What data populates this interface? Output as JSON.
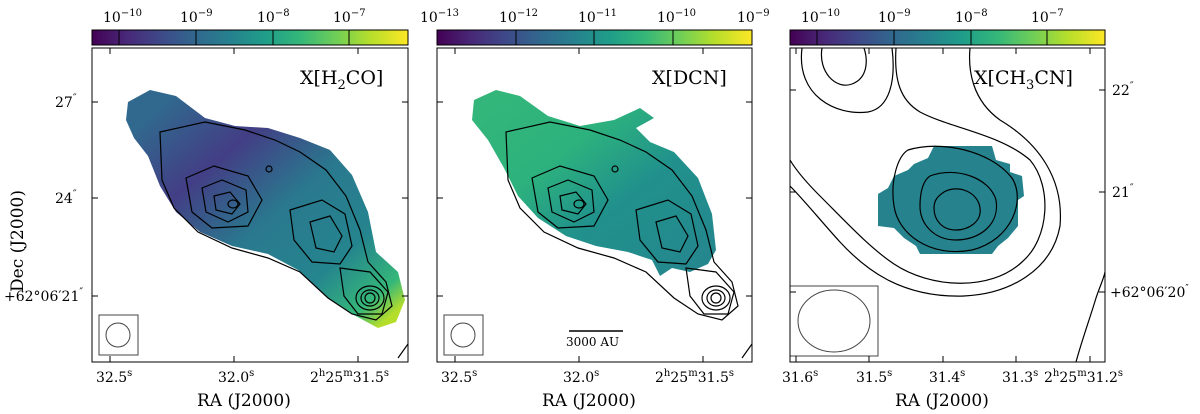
{
  "figure": {
    "xlabel": "RA (J2000)",
    "ylabel": "Dec (J2000)",
    "colors": {
      "viridis": [
        "#440154",
        "#482878",
        "#3e4a89",
        "#31688e",
        "#26828e",
        "#1f9e89",
        "#35b779",
        "#6ece58",
        "#b5de2b",
        "#fde725"
      ],
      "contour": "#000000",
      "frame": "#000000"
    }
  },
  "panels": [
    {
      "id": "h2co",
      "label_main": "X[H",
      "label_sub": "2",
      "label_end": "CO]",
      "colorbar_ticks": [
        {
          "base": "10",
          "exp": "−10"
        },
        {
          "base": "10",
          "exp": "−9"
        },
        {
          "base": "10",
          "exp": "−8"
        },
        {
          "base": "10",
          "exp": "−7"
        }
      ],
      "x_ticks": [
        {
          "main": "32.5",
          "sup": "s"
        },
        {
          "main": "32.0",
          "sup": "s"
        },
        {
          "main": "2",
          "sup": "h",
          "main2": "25",
          "sup2": "m",
          "main3": "31.5",
          "sup3": "s"
        }
      ],
      "y_ticks": [
        {
          "main": "27",
          "sup": "″"
        },
        {
          "main": "24",
          "sup": "″"
        },
        {
          "main": "+62°06′21",
          "sup": "″"
        }
      ]
    },
    {
      "id": "dcn",
      "label_main": "X[DCN]",
      "colorbar_ticks": [
        {
          "base": "10",
          "exp": "−13"
        },
        {
          "base": "10",
          "exp": "−12"
        },
        {
          "base": "10",
          "exp": "−11"
        },
        {
          "base": "10",
          "exp": "−10"
        },
        {
          "base": "10",
          "exp": "−9"
        }
      ],
      "x_ticks": [
        {
          "main": "32.5",
          "sup": "s"
        },
        {
          "main": "32.0",
          "sup": "s"
        },
        {
          "main": "2",
          "sup": "h",
          "main2": "25",
          "sup2": "m",
          "main3": "31.5",
          "sup3": "s"
        }
      ],
      "scalebar_label": "3000 AU"
    },
    {
      "id": "ch3cn",
      "label_main": "X[CH",
      "label_sub": "3",
      "label_end": "CN]",
      "colorbar_ticks": [
        {
          "base": "10",
          "exp": "−10"
        },
        {
          "base": "10",
          "exp": "−9"
        },
        {
          "base": "10",
          "exp": "−8"
        },
        {
          "base": "10",
          "exp": "−7"
        }
      ],
      "x_ticks": [
        {
          "main": "31.6",
          "sup": "s"
        },
        {
          "main": "31.5",
          "sup": "s"
        },
        {
          "main": "31.4",
          "sup": "s"
        },
        {
          "main": "31.3",
          "sup": "s"
        },
        {
          "main": "2",
          "sup": "h",
          "main2": "25",
          "sup2": "m",
          "main3": "31.2",
          "sup3": "s"
        }
      ],
      "y_ticks": [
        {
          "main": "22",
          "sup": "″"
        },
        {
          "main": "21",
          "sup": "″"
        },
        {
          "main": "+62°06′20",
          "sup": "″"
        }
      ]
    }
  ]
}
